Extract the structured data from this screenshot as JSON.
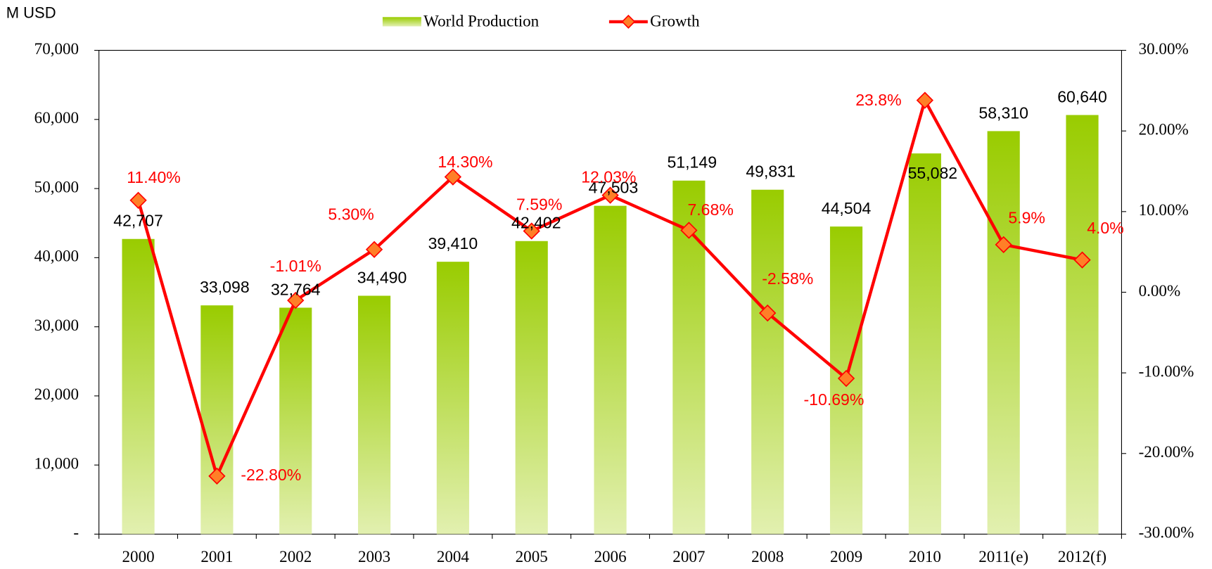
{
  "chart_data": {
    "type": "bar_line",
    "y_axis_label": "M USD",
    "categories": [
      "2000",
      "2001",
      "2002",
      "2003",
      "2004",
      "2005",
      "2006",
      "2007",
      "2008",
      "2009",
      "2010",
      "2011(e)",
      "2012(f)"
    ],
    "series": [
      {
        "name": "World Production",
        "type": "bar",
        "color": "#99cc00",
        "values": [
          42707,
          33098,
          32764,
          34490,
          39410,
          42402,
          47503,
          51149,
          49831,
          44504,
          55082,
          58310,
          60640
        ],
        "value_labels": [
          "42,707",
          "33,098",
          "32,764",
          "34,490",
          "39,410",
          "42,402",
          "47,503",
          "51,149",
          "49,831",
          "44,504",
          "55,082",
          "58,310",
          "60,640"
        ]
      },
      {
        "name": "Growth",
        "type": "line",
        "axis": "y2",
        "color": "#ff0000",
        "values": [
          11.4,
          -22.8,
          -1.01,
          5.3,
          14.3,
          7.59,
          12.03,
          7.68,
          -2.58,
          -10.69,
          23.8,
          5.9,
          4.0
        ],
        "value_labels": [
          "11.40%",
          "-22.80%",
          "-1.01%",
          "5.30%",
          "14.30%",
          "7.59%",
          "12.03%",
          "7.68%",
          "-2.58%",
          "-10.69%",
          "23.8%",
          "5.9%",
          "4.0%"
        ]
      }
    ],
    "ylim": [
      0,
      70000
    ],
    "yticks": [
      {
        "value": 0,
        "label": "-"
      },
      {
        "value": 10000,
        "label": "10,000"
      },
      {
        "value": 20000,
        "label": "20,000"
      },
      {
        "value": 30000,
        "label": "30,000"
      },
      {
        "value": 40000,
        "label": "40,000"
      },
      {
        "value": 50000,
        "label": "50,000"
      },
      {
        "value": 60000,
        "label": "60,000"
      },
      {
        "value": 70000,
        "label": "70,000"
      }
    ],
    "y2lim": [
      -30,
      30
    ],
    "y2ticks": [
      {
        "value": -30,
        "label": "-30.00%"
      },
      {
        "value": -20,
        "label": "-20.00%"
      },
      {
        "value": -10,
        "label": "-10.00%"
      },
      {
        "value": 0,
        "label": "0.00%"
      },
      {
        "value": 10,
        "label": "10.00%"
      },
      {
        "value": 20,
        "label": "20.00%"
      },
      {
        "value": 30,
        "label": "30.00%"
      }
    ]
  }
}
